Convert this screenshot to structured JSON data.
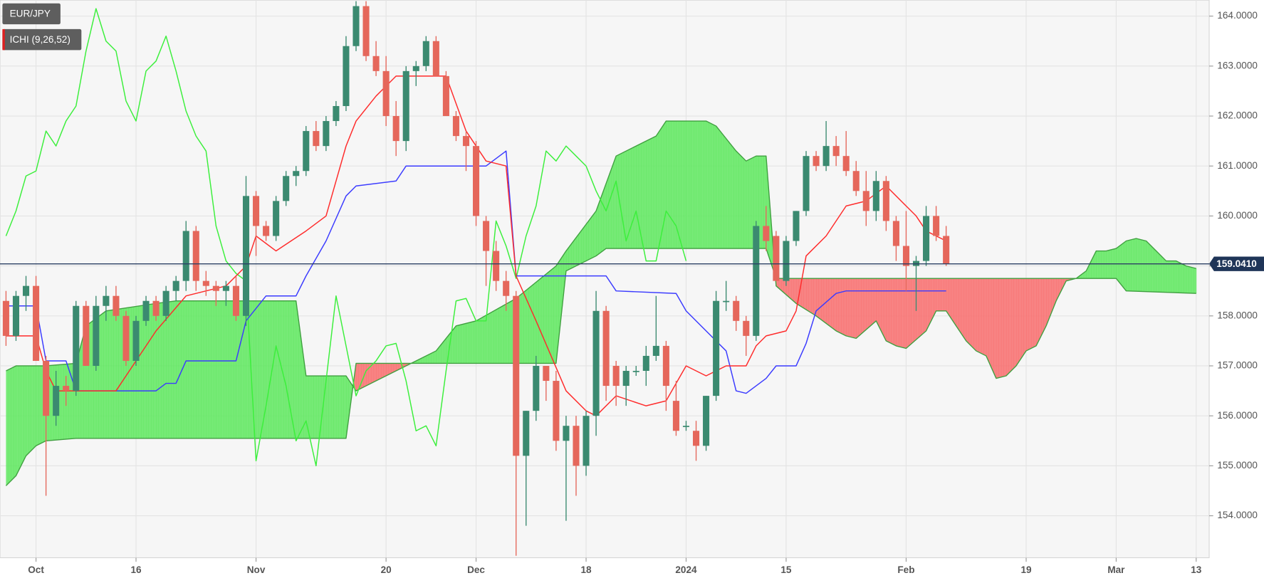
{
  "chart_data": {
    "type": "candlestick",
    "symbol": "EUR/JPY",
    "indicator": "ICHI (9,26,52)",
    "up_color": "#3b8a70",
    "down_color": "#e5675b",
    "cloud_up_color": "#5fe85f",
    "cloud_down_color": "#f86e6e",
    "xlim": [
      -3.6,
      117.3
    ],
    "ylim": [
      153.16,
      164.32
    ],
    "grid": true,
    "xticks": [
      {
        "value": 0,
        "label": "Oct"
      },
      {
        "value": 10,
        "label": "16"
      },
      {
        "value": 22,
        "label": "Nov"
      },
      {
        "value": 35,
        "label": "20"
      },
      {
        "value": 44,
        "label": "Dec"
      },
      {
        "value": 55,
        "label": "18"
      },
      {
        "value": 65,
        "label": "2024"
      },
      {
        "value": 75,
        "label": "15"
      },
      {
        "value": 87,
        "label": "Feb"
      },
      {
        "value": 99,
        "label": "19"
      },
      {
        "value": 108,
        "label": "Mar"
      },
      {
        "value": 116,
        "label": "13"
      }
    ],
    "yticks": [
      {
        "value": 154,
        "label": "154.0000"
      },
      {
        "value": 155,
        "label": "155.0000"
      },
      {
        "value": 156,
        "label": "156.0000"
      },
      {
        "value": 157,
        "label": "157.0000"
      },
      {
        "value": 158,
        "label": "158.0000"
      },
      {
        "value": 159,
        "label": "159.0000"
      },
      {
        "value": 160,
        "label": "160.0000"
      },
      {
        "value": 161,
        "label": "161.0000"
      },
      {
        "value": 162,
        "label": "162.0000"
      },
      {
        "value": 163,
        "label": "163.0000"
      },
      {
        "value": 164,
        "label": "164.0000"
      }
    ],
    "last_price": {
      "value": 159.041,
      "label": "159.0410"
    },
    "x": [
      -3,
      -2,
      -1,
      0,
      1,
      2,
      3,
      4,
      5,
      6,
      7,
      8,
      9,
      10,
      11,
      12,
      13,
      14,
      15,
      16,
      17,
      18,
      19,
      20,
      21,
      22,
      23,
      24,
      25,
      26,
      27,
      28,
      29,
      30,
      31,
      32,
      33,
      34,
      35,
      36,
      37,
      38,
      39,
      40,
      41,
      42,
      43,
      44,
      45,
      46,
      47,
      48,
      49,
      50,
      51,
      52,
      53,
      54,
      55,
      56,
      57,
      58,
      59,
      60,
      61,
      62,
      63,
      64,
      65,
      66,
      67,
      68,
      69,
      70,
      71,
      72,
      73,
      74,
      75,
      76,
      77,
      78,
      79,
      80,
      81,
      82,
      83,
      84,
      85,
      86,
      87,
      88,
      89,
      90,
      91
    ],
    "open": [
      158.3,
      157.6,
      158.4,
      158.6,
      157.1,
      156.0,
      156.6,
      156.5,
      158.2,
      157.0,
      158.2,
      158.4,
      158.0,
      157.1,
      157.9,
      158.3,
      158.0,
      158.5,
      158.7,
      159.7,
      158.7,
      158.6,
      158.5,
      158.6,
      158.0,
      160.4,
      159.8,
      159.6,
      160.3,
      160.8,
      160.9,
      161.7,
      161.4,
      161.9,
      162.2,
      163.4,
      164.2,
      163.2,
      162.9,
      162.0,
      161.5,
      162.9,
      163.0,
      163.5,
      162.8,
      162.0,
      161.6,
      161.4,
      159.9,
      159.3,
      158.7,
      158.4,
      155.2,
      156.1,
      157.0,
      156.7,
      155.5,
      155.8,
      155.0,
      156.0,
      158.1,
      157.0,
      156.6,
      156.9,
      156.9,
      157.2,
      157.4,
      156.3,
      155.8,
      155.7,
      155.4,
      156.4,
      158.3,
      158.3,
      157.9,
      157.6,
      159.8,
      159.6,
      158.7,
      159.5,
      160.1,
      161.2,
      161.0,
      161.4,
      161.2,
      160.9,
      160.5,
      160.1,
      160.7,
      159.9,
      159.4,
      159.0,
      159.1,
      160.0,
      159.6
    ],
    "high": [
      158.5,
      158.5,
      158.8,
      158.8,
      157.2,
      156.9,
      156.8,
      158.3,
      158.3,
      158.4,
      158.6,
      158.6,
      158.1,
      158.0,
      158.4,
      158.4,
      158.6,
      158.8,
      159.9,
      159.8,
      158.9,
      158.7,
      158.7,
      158.8,
      160.8,
      160.5,
      159.9,
      160.4,
      160.9,
      161.0,
      161.8,
      161.9,
      162.0,
      162.3,
      163.6,
      164.3,
      164.3,
      163.5,
      163.2,
      162.3,
      163.0,
      163.1,
      163.6,
      163.6,
      162.9,
      162.1,
      161.7,
      161.5,
      160.0,
      159.5,
      158.9,
      158.5,
      156.1,
      157.2,
      157.0,
      156.9,
      156.0,
      156.0,
      156.1,
      158.5,
      158.2,
      157.1,
      157.0,
      157.0,
      157.4,
      158.4,
      157.5,
      156.7,
      155.9,
      155.9,
      156.4,
      158.5,
      158.7,
      158.4,
      158.0,
      159.9,
      160.2,
      159.7,
      159.6,
      160.1,
      161.3,
      161.3,
      161.9,
      161.6,
      161.7,
      161.1,
      160.9,
      160.9,
      160.8,
      160.0,
      160.1,
      159.2,
      160.2,
      160.2,
      159.8
    ],
    "low": [
      157.4,
      157.5,
      158.1,
      157.1,
      154.4,
      155.8,
      156.2,
      156.4,
      157.0,
      156.9,
      157.9,
      157.9,
      157.0,
      157.0,
      157.8,
      157.9,
      157.9,
      158.3,
      158.5,
      158.5,
      158.4,
      158.2,
      158.2,
      157.9,
      157.8,
      159.2,
      159.5,
      159.5,
      160.2,
      160.6,
      160.8,
      161.3,
      161.3,
      161.8,
      162.1,
      163.3,
      163.1,
      162.8,
      161.8,
      161.2,
      161.3,
      162.6,
      162.9,
      162.8,
      162.0,
      161.5,
      160.9,
      159.8,
      158.6,
      158.5,
      158.1,
      153.2,
      153.8,
      155.9,
      156.3,
      155.3,
      153.9,
      154.4,
      154.8,
      155.6,
      156.3,
      156.2,
      156.2,
      156.8,
      156.6,
      157.1,
      156.1,
      155.6,
      155.7,
      155.1,
      155.3,
      156.3,
      158.1,
      157.7,
      157.2,
      157.5,
      159.3,
      158.7,
      158.6,
      159.4,
      160.0,
      160.9,
      160.9,
      161.0,
      160.8,
      160.4,
      159.8,
      159.9,
      159.7,
      159.1,
      158.5,
      158.1,
      159.0,
      159.5,
      159.0
    ],
    "close": [
      157.6,
      158.4,
      158.6,
      157.1,
      156.0,
      156.6,
      156.5,
      158.2,
      157.0,
      158.2,
      158.4,
      158.0,
      157.1,
      157.9,
      158.3,
      158.0,
      158.5,
      158.7,
      159.7,
      158.7,
      158.6,
      158.5,
      158.6,
      158.0,
      160.4,
      159.8,
      159.6,
      160.3,
      160.8,
      160.9,
      161.7,
      161.4,
      161.9,
      162.2,
      163.4,
      164.2,
      163.2,
      162.9,
      162.0,
      161.5,
      162.9,
      163.0,
      163.5,
      162.8,
      162.0,
      161.6,
      161.4,
      160.0,
      159.3,
      158.7,
      158.4,
      155.2,
      156.1,
      157.0,
      156.7,
      155.5,
      155.8,
      155.0,
      156.0,
      158.1,
      156.6,
      156.6,
      156.9,
      156.9,
      157.2,
      157.4,
      156.6,
      155.7,
      155.8,
      155.4,
      156.4,
      158.3,
      158.3,
      157.9,
      157.6,
      159.8,
      159.5,
      158.7,
      159.5,
      160.1,
      161.2,
      161.0,
      161.4,
      161.2,
      160.9,
      160.5,
      160.1,
      160.7,
      159.9,
      159.4,
      159.0,
      159.1,
      160.0,
      159.6,
      159.04
    ],
    "tenkan_sen": {
      "color": "#ff2b2b",
      "x": [
        -3,
        0,
        1,
        2,
        8,
        12,
        15,
        19,
        21,
        22,
        24,
        27,
        29,
        31,
        32,
        34,
        36,
        41,
        43,
        45,
        47,
        48,
        50,
        53,
        55,
        56,
        58,
        61,
        63,
        65,
        67,
        69,
        71,
        72,
        73,
        75,
        76,
        77,
        79,
        81,
        83,
        85,
        87,
        88,
        89,
        91
      ],
      "values": [
        157.6,
        157.6,
        156.9,
        156.5,
        156.5,
        157.7,
        158.4,
        158.6,
        159.0,
        159.6,
        159.3,
        159.7,
        160.0,
        161.4,
        161.9,
        162.4,
        162.8,
        162.8,
        161.7,
        161.1,
        161.0,
        158.8,
        157.9,
        156.5,
        156.1,
        156.0,
        156.4,
        156.2,
        156.3,
        157.0,
        156.8,
        157.0,
        157.0,
        157.4,
        157.6,
        157.7,
        158.1,
        159.2,
        159.6,
        160.2,
        160.3,
        160.6,
        160.2,
        160.0,
        159.7,
        159.5
      ]
    },
    "kijun_sen": {
      "color": "#3b3bff",
      "x": [
        -3,
        0,
        1,
        3,
        4,
        12,
        13,
        14,
        15,
        20,
        21,
        23,
        26,
        27,
        29,
        31,
        32,
        36,
        37,
        45,
        47,
        48,
        57,
        58,
        64,
        65,
        67,
        69,
        70,
        71,
        73,
        74,
        76,
        77,
        78,
        80,
        81,
        91
      ],
      "values": [
        158.2,
        158.2,
        157.1,
        157.1,
        156.5,
        156.5,
        156.65,
        156.65,
        157.1,
        157.1,
        157.9,
        158.4,
        158.4,
        158.8,
        159.5,
        160.4,
        160.6,
        160.7,
        161.0,
        161.0,
        161.3,
        158.8,
        158.8,
        158.5,
        158.45,
        158.1,
        157.7,
        157.3,
        156.5,
        156.45,
        156.75,
        157.0,
        157.0,
        157.45,
        158.1,
        158.45,
        158.5,
        158.5
      ]
    },
    "chikou_span": {
      "color": "#3cef3c",
      "x": [
        -3,
        -2,
        -1,
        0,
        1,
        2,
        3,
        4,
        5,
        6,
        7,
        8,
        9,
        10,
        11,
        12,
        13,
        14,
        15,
        16,
        17,
        18,
        19,
        20,
        21,
        22,
        23,
        24,
        25,
        26,
        27,
        28,
        29,
        30,
        31,
        32,
        33,
        34,
        35,
        36,
        37,
        38,
        39,
        40,
        41,
        42,
        43,
        44,
        45,
        46,
        47,
        48,
        49,
        50,
        51,
        52,
        53,
        54,
        55,
        56,
        57,
        58,
        59,
        60,
        61,
        62,
        63,
        64,
        65
      ],
      "values": [
        159.6,
        160.1,
        160.8,
        160.9,
        161.7,
        161.4,
        161.9,
        162.2,
        163.3,
        164.15,
        163.5,
        163.3,
        162.3,
        161.9,
        162.9,
        163.1,
        163.6,
        162.9,
        162.1,
        161.6,
        161.3,
        159.8,
        159.1,
        158.85,
        158.7,
        155.1,
        156.2,
        157.4,
        156.6,
        155.5,
        155.9,
        155.0,
        156.7,
        158.4,
        157.4,
        156.4,
        156.9,
        157.1,
        157.4,
        157.45,
        156.7,
        155.7,
        155.8,
        155.4,
        156.9,
        158.3,
        158.35,
        157.9,
        157.9,
        159.9,
        159.4,
        158.75,
        159.6,
        160.2,
        161.3,
        161.1,
        161.4,
        161.2,
        161.0,
        160.5,
        160.1,
        160.7,
        159.5,
        160.1,
        159.1,
        159.1,
        160.1,
        159.8,
        159.1
      ]
    },
    "senkou_span_a": {
      "color": "#3f9f3f",
      "x": [
        -3,
        -2,
        1,
        4,
        5,
        7,
        12,
        14,
        26,
        27,
        31,
        32,
        34,
        36,
        38,
        40,
        42,
        44,
        48,
        52,
        53,
        56,
        58,
        60,
        62,
        63,
        67,
        68,
        70,
        71,
        72,
        73,
        74,
        76,
        78,
        79,
        80,
        81,
        82,
        84,
        85,
        86,
        87,
        89,
        90,
        91,
        92,
        93,
        94,
        95,
        96,
        97,
        98,
        99,
        100,
        101,
        102,
        103,
        104,
        105,
        106,
        107,
        108,
        109,
        110,
        111,
        112,
        113,
        114,
        115,
        116
      ],
      "values": [
        156.9,
        157.0,
        157.0,
        157.05,
        157.8,
        158.1,
        158.25,
        158.3,
        158.3,
        156.8,
        156.8,
        156.5,
        156.7,
        156.9,
        157.1,
        157.3,
        157.8,
        157.9,
        158.35,
        159.0,
        159.3,
        160.1,
        161.2,
        161.4,
        161.6,
        161.9,
        161.9,
        161.8,
        161.3,
        161.1,
        161.2,
        161.2,
        158.6,
        158.25,
        158.0,
        157.85,
        157.7,
        157.6,
        157.55,
        157.9,
        157.5,
        157.4,
        157.35,
        157.7,
        158.1,
        158.1,
        157.8,
        157.5,
        157.3,
        157.2,
        156.75,
        156.8,
        157.0,
        157.3,
        157.4,
        157.8,
        158.3,
        158.7,
        158.75,
        158.9,
        159.3,
        159.3,
        159.35,
        159.5,
        159.55,
        159.5,
        159.3,
        159.1,
        159.1,
        159.0,
        158.95
      ]
    },
    "senkou_span_b": {
      "color": "#3f9f3f",
      "x": [
        -3,
        -2,
        -1,
        0,
        1,
        4,
        31,
        32,
        52,
        53,
        56,
        57,
        73,
        74,
        108,
        109,
        116
      ],
      "values": [
        154.6,
        154.8,
        155.2,
        155.4,
        155.5,
        155.55,
        155.55,
        157.05,
        157.05,
        158.9,
        159.2,
        159.35,
        159.35,
        158.75,
        158.75,
        158.5,
        158.45
      ]
    }
  }
}
